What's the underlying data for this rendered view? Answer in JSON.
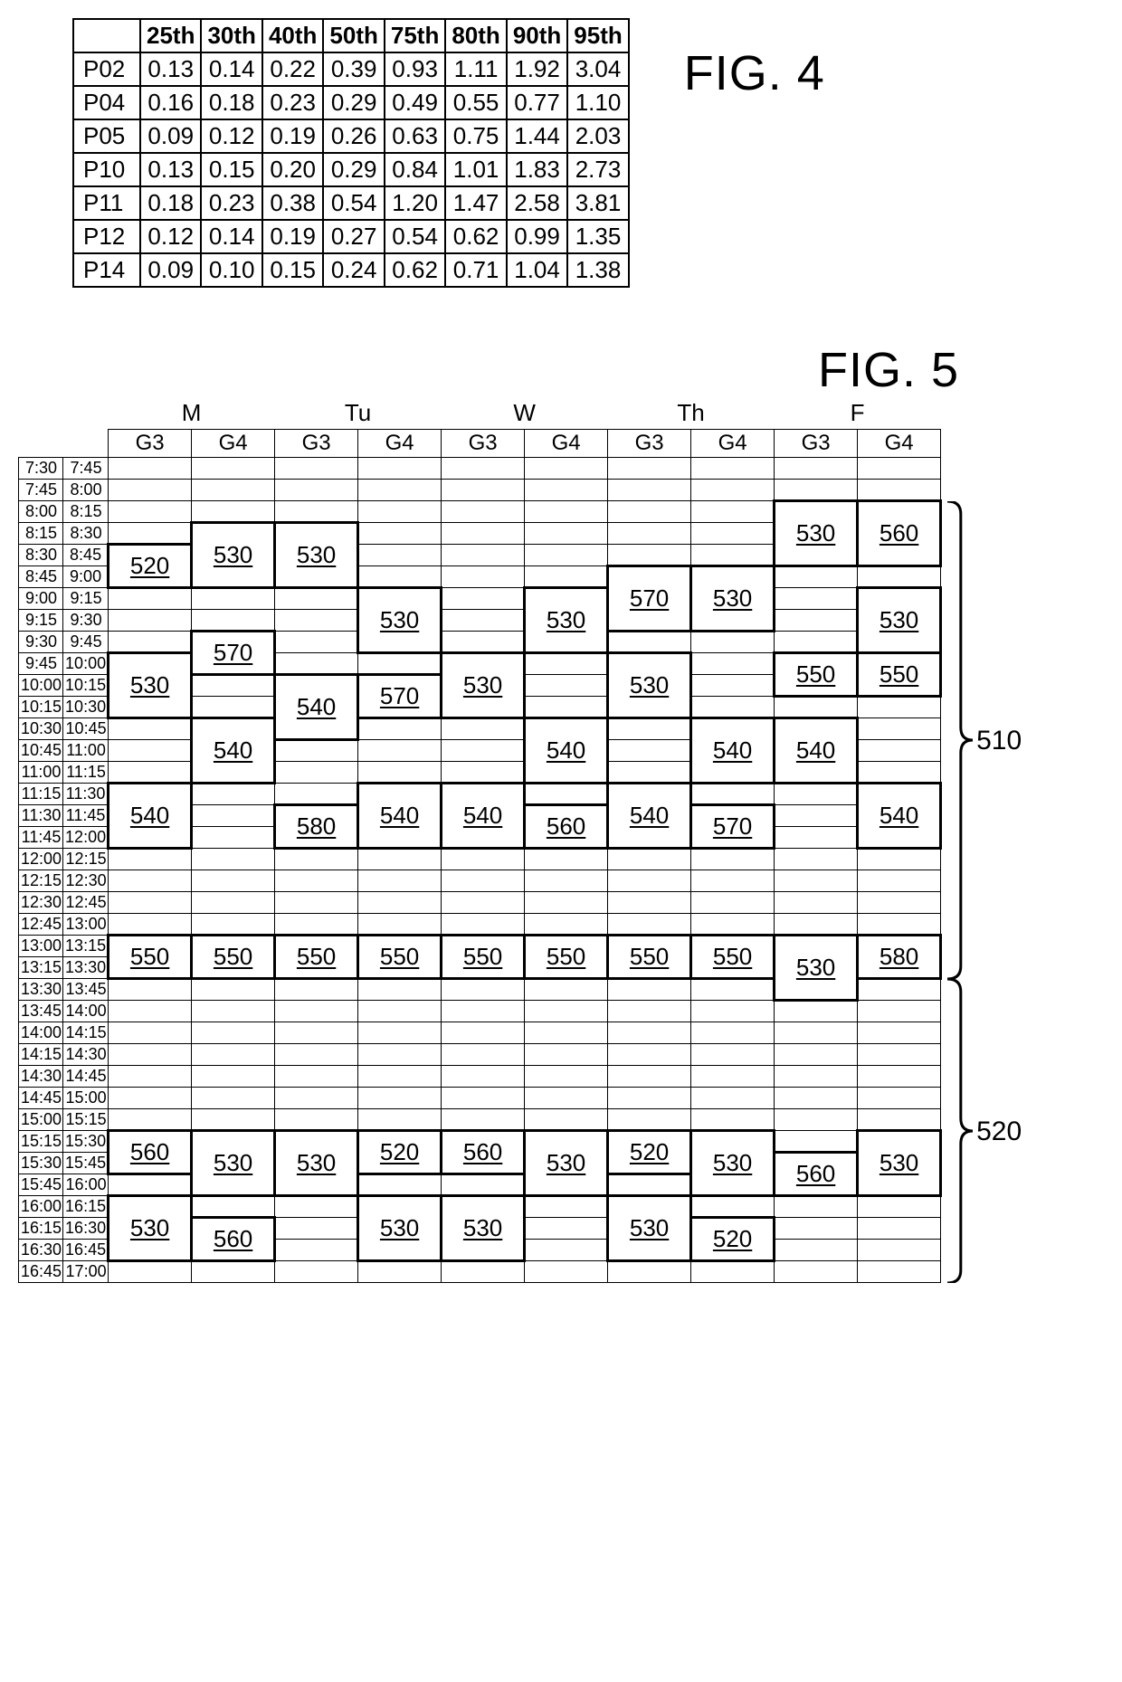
{
  "fig4": {
    "label": "FIG. 4",
    "columns": [
      "",
      "25th",
      "30th",
      "40th",
      "50th",
      "75th",
      "80th",
      "90th",
      "95th"
    ],
    "rows": [
      [
        "P02",
        "0.13",
        "0.14",
        "0.22",
        "0.39",
        "0.93",
        "1.11",
        "1.92",
        "3.04"
      ],
      [
        "P04",
        "0.16",
        "0.18",
        "0.23",
        "0.29",
        "0.49",
        "0.55",
        "0.77",
        "1.10"
      ],
      [
        "P05",
        "0.09",
        "0.12",
        "0.19",
        "0.26",
        "0.63",
        "0.75",
        "1.44",
        "2.03"
      ],
      [
        "P10",
        "0.13",
        "0.15",
        "0.20",
        "0.29",
        "0.84",
        "1.01",
        "1.83",
        "2.73"
      ],
      [
        "P11",
        "0.18",
        "0.23",
        "0.38",
        "0.54",
        "1.20",
        "1.47",
        "2.58",
        "3.81"
      ],
      [
        "P12",
        "0.12",
        "0.14",
        "0.19",
        "0.27",
        "0.54",
        "0.62",
        "0.99",
        "1.35"
      ],
      [
        "P14",
        "0.09",
        "0.10",
        "0.15",
        "0.24",
        "0.62",
        "0.71",
        "1.04",
        "1.38"
      ]
    ],
    "font_size_pt": 26,
    "border_color": "#000000",
    "background_color": "#ffffff"
  },
  "fig5": {
    "label": "FIG. 5",
    "days": [
      "M",
      "Tu",
      "W",
      "Th",
      "F"
    ],
    "groups": [
      "G3",
      "G4"
    ],
    "time_slots": [
      [
        "7:30",
        "7:45"
      ],
      [
        "7:45",
        "8:00"
      ],
      [
        "8:00",
        "8:15"
      ],
      [
        "8:15",
        "8:30"
      ],
      [
        "8:30",
        "8:45"
      ],
      [
        "8:45",
        "9:00"
      ],
      [
        "9:00",
        "9:15"
      ],
      [
        "9:15",
        "9:30"
      ],
      [
        "9:30",
        "9:45"
      ],
      [
        "9:45",
        "10:00"
      ],
      [
        "10:00",
        "10:15"
      ],
      [
        "10:15",
        "10:30"
      ],
      [
        "10:30",
        "10:45"
      ],
      [
        "10:45",
        "11:00"
      ],
      [
        "11:00",
        "11:15"
      ],
      [
        "11:15",
        "11:30"
      ],
      [
        "11:30",
        "11:45"
      ],
      [
        "11:45",
        "12:00"
      ],
      [
        "12:00",
        "12:15"
      ],
      [
        "12:15",
        "12:30"
      ],
      [
        "12:30",
        "12:45"
      ],
      [
        "12:45",
        "13:00"
      ],
      [
        "13:00",
        "13:15"
      ],
      [
        "13:15",
        "13:30"
      ],
      [
        "13:30",
        "13:45"
      ],
      [
        "13:45",
        "14:00"
      ],
      [
        "14:00",
        "14:15"
      ],
      [
        "14:15",
        "14:30"
      ],
      [
        "14:30",
        "14:45"
      ],
      [
        "14:45",
        "15:00"
      ],
      [
        "15:00",
        "15:15"
      ],
      [
        "15:15",
        "15:30"
      ],
      [
        "15:30",
        "15:45"
      ],
      [
        "15:45",
        "16:00"
      ],
      [
        "16:00",
        "16:15"
      ],
      [
        "16:15",
        "16:30"
      ],
      [
        "16:30",
        "16:45"
      ],
      [
        "16:45",
        "17:00"
      ]
    ],
    "blocks": [
      {
        "col": 0,
        "start": 4,
        "span": 2,
        "label": "520"
      },
      {
        "col": 0,
        "start": 9,
        "span": 3,
        "label": "530"
      },
      {
        "col": 0,
        "start": 15,
        "span": 3,
        "label": "540"
      },
      {
        "col": 0,
        "start": 22,
        "span": 2,
        "label": "550"
      },
      {
        "col": 0,
        "start": 31,
        "span": 2,
        "label": "560"
      },
      {
        "col": 0,
        "start": 34,
        "span": 3,
        "label": "530"
      },
      {
        "col": 1,
        "start": 3,
        "span": 3,
        "label": "530"
      },
      {
        "col": 1,
        "start": 8,
        "span": 2,
        "label": "570"
      },
      {
        "col": 1,
        "start": 12,
        "span": 3,
        "label": "540"
      },
      {
        "col": 1,
        "start": 22,
        "span": 2,
        "label": "550"
      },
      {
        "col": 1,
        "start": 31,
        "span": 3,
        "label": "530"
      },
      {
        "col": 1,
        "start": 35,
        "span": 2,
        "label": "560"
      },
      {
        "col": 2,
        "start": 3,
        "span": 3,
        "label": "530"
      },
      {
        "col": 2,
        "start": 10,
        "span": 3,
        "label": "540"
      },
      {
        "col": 2,
        "start": 16,
        "span": 2,
        "label": "580"
      },
      {
        "col": 2,
        "start": 22,
        "span": 2,
        "label": "550"
      },
      {
        "col": 2,
        "start": 31,
        "span": 3,
        "label": "530"
      },
      {
        "col": 3,
        "start": 6,
        "span": 3,
        "label": "530"
      },
      {
        "col": 3,
        "start": 10,
        "span": 2,
        "label": "570"
      },
      {
        "col": 3,
        "start": 15,
        "span": 3,
        "label": "540"
      },
      {
        "col": 3,
        "start": 22,
        "span": 2,
        "label": "550"
      },
      {
        "col": 3,
        "start": 31,
        "span": 2,
        "label": "520"
      },
      {
        "col": 3,
        "start": 34,
        "span": 3,
        "label": "530"
      },
      {
        "col": 4,
        "start": 9,
        "span": 3,
        "label": "530"
      },
      {
        "col": 4,
        "start": 15,
        "span": 3,
        "label": "540"
      },
      {
        "col": 4,
        "start": 22,
        "span": 2,
        "label": "550"
      },
      {
        "col": 4,
        "start": 31,
        "span": 2,
        "label": "560"
      },
      {
        "col": 4,
        "start": 34,
        "span": 3,
        "label": "530"
      },
      {
        "col": 5,
        "start": 6,
        "span": 3,
        "label": "530"
      },
      {
        "col": 5,
        "start": 12,
        "span": 3,
        "label": "540"
      },
      {
        "col": 5,
        "start": 16,
        "span": 2,
        "label": "560"
      },
      {
        "col": 5,
        "start": 22,
        "span": 2,
        "label": "550"
      },
      {
        "col": 5,
        "start": 31,
        "span": 3,
        "label": "530"
      },
      {
        "col": 6,
        "start": 5,
        "span": 3,
        "label": "570"
      },
      {
        "col": 6,
        "start": 9,
        "span": 3,
        "label": "530"
      },
      {
        "col": 6,
        "start": 15,
        "span": 3,
        "label": "540"
      },
      {
        "col": 6,
        "start": 22,
        "span": 2,
        "label": "550"
      },
      {
        "col": 6,
        "start": 31,
        "span": 2,
        "label": "520"
      },
      {
        "col": 6,
        "start": 34,
        "span": 3,
        "label": "530"
      },
      {
        "col": 7,
        "start": 5,
        "span": 3,
        "label": "530"
      },
      {
        "col": 7,
        "start": 12,
        "span": 3,
        "label": "540"
      },
      {
        "col": 7,
        "start": 16,
        "span": 2,
        "label": "570"
      },
      {
        "col": 7,
        "start": 22,
        "span": 2,
        "label": "550"
      },
      {
        "col": 7,
        "start": 31,
        "span": 3,
        "label": "530"
      },
      {
        "col": 7,
        "start": 35,
        "span": 2,
        "label": "520"
      },
      {
        "col": 8,
        "start": 2,
        "span": 3,
        "label": "530"
      },
      {
        "col": 8,
        "start": 9,
        "span": 2,
        "label": "550"
      },
      {
        "col": 8,
        "start": 12,
        "span": 3,
        "label": "540"
      },
      {
        "col": 8,
        "start": 22,
        "span": 3,
        "label": "530"
      },
      {
        "col": 8,
        "start": 32,
        "span": 2,
        "label": "560"
      },
      {
        "col": 9,
        "start": 2,
        "span": 3,
        "label": "560"
      },
      {
        "col": 9,
        "start": 6,
        "span": 3,
        "label": "530"
      },
      {
        "col": 9,
        "start": 9,
        "span": 2,
        "label": "550"
      },
      {
        "col": 9,
        "start": 15,
        "span": 3,
        "label": "540"
      },
      {
        "col": 9,
        "start": 22,
        "span": 2,
        "label": "580"
      },
      {
        "col": 9,
        "start": 31,
        "span": 3,
        "label": "530"
      }
    ],
    "bracket_510": "510",
    "bracket_520": "520",
    "font_size_pt": 20,
    "block_font_size_pt": 26,
    "border_color": "#000000",
    "block_border_width": 3,
    "background_color": "#ffffff"
  }
}
